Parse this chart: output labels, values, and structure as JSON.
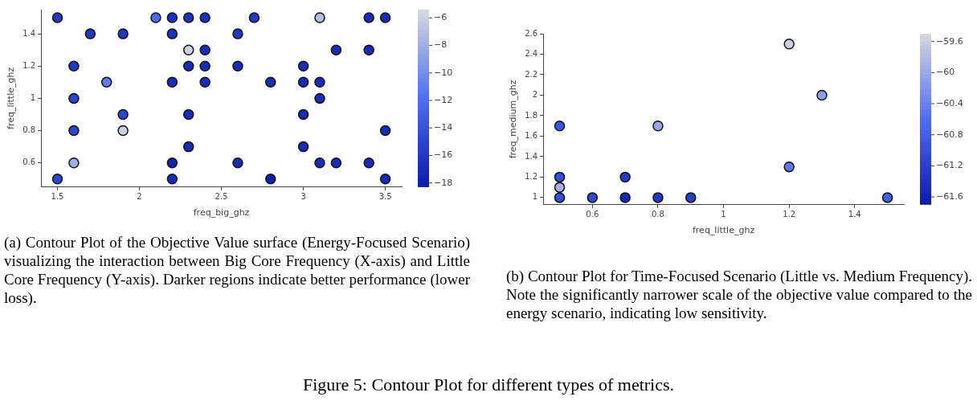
{
  "chart_data": [
    {
      "type": "scatter",
      "xlabel": "freq_big_ghz",
      "ylabel": "freq_little_ghz",
      "xlim": [
        1.4,
        3.6
      ],
      "ylim": [
        0.45,
        1.55
      ],
      "xticks": [
        1.5,
        2,
        2.5,
        3,
        3.5
      ],
      "yticks": [
        0.6,
        0.8,
        1,
        1.2,
        1.4
      ],
      "clim": [
        -18.3,
        -5.4
      ],
      "cticks": [
        -18,
        -16,
        -14,
        -12,
        -10,
        -8,
        -6
      ],
      "marker": "circle",
      "x": [
        1.5,
        2.1,
        2.2,
        2.3,
        2.4,
        2.7,
        3.1,
        3.4,
        3.5,
        1.7,
        1.9,
        2.2,
        2.6,
        2.3,
        2.4,
        3.2,
        3.4,
        1.6,
        2.3,
        2.4,
        2.6,
        3.0,
        1.8,
        2.2,
        2.4,
        2.8,
        3.0,
        3.1,
        1.6,
        3.1,
        1.9,
        2.3,
        3.0,
        1.6,
        1.9,
        3.5,
        2.3,
        3.0,
        1.6,
        2.2,
        2.6,
        3.1,
        3.2,
        3.4,
        1.5,
        2.2,
        2.8,
        3.5
      ],
      "values": [
        1.5,
        1.5,
        1.5,
        1.5,
        1.5,
        1.5,
        1.5,
        1.5,
        1.5,
        1.4,
        1.4,
        1.4,
        1.4,
        1.3,
        1.3,
        1.3,
        1.3,
        1.2,
        1.2,
        1.2,
        1.2,
        1.2,
        1.1,
        1.1,
        1.1,
        1.1,
        1.1,
        1.1,
        1.0,
        1.0,
        0.9,
        0.9,
        0.9,
        0.8,
        0.8,
        0.8,
        0.7,
        0.7,
        0.6,
        0.6,
        0.6,
        0.6,
        0.6,
        0.6,
        0.5,
        0.5,
        0.5,
        0.5
      ],
      "cvalues": [
        -16,
        -12,
        -16.5,
        -16.5,
        -16.5,
        -16,
        -7,
        -17,
        -17,
        -16,
        -16,
        -16.5,
        -16,
        -6,
        -17,
        -17,
        -17,
        -16,
        -17,
        -17,
        -17,
        -17,
        -11,
        -17,
        -17,
        -17,
        -17,
        -17,
        -15,
        -17,
        -15,
        -17,
        -17,
        -15,
        -6,
        -17,
        -17,
        -17,
        -8,
        -17.5,
        -17,
        -17,
        -17,
        -17,
        -15,
        -17,
        -18,
        -17
      ],
      "annotations": [
        "(a) Contour Plot of the Objective Value surface (Energy-Focused Scenario) visualizing the interaction between Big Core Frequency (X-axis) and Little Core Frequency (Y-axis). Darker regions indicate better performance (lower loss)."
      ]
    },
    {
      "type": "scatter",
      "xlabel": "freq_little_ghz",
      "ylabel": "freq_medium_ghz",
      "xlim": [
        0.45,
        1.55
      ],
      "ylim": [
        0.93,
        2.6
      ],
      "xticks": [
        0.6,
        0.8,
        1,
        1.2,
        1.4
      ],
      "yticks": [
        1,
        1.2,
        1.4,
        1.6,
        1.8,
        2,
        2.2,
        2.4,
        2.6
      ],
      "clim": [
        -61.7,
        -59.5
      ],
      "cticks": [
        -61.6,
        -61.2,
        -60.8,
        -60.4,
        -60,
        -59.6
      ],
      "marker": "circle",
      "x": [
        0.5,
        0.5,
        0.5,
        0.5,
        0.6,
        0.7,
        0.7,
        0.8,
        0.9,
        0.8,
        1.2,
        1.3,
        1.2,
        1.5
      ],
      "values": [
        1.7,
        1.2,
        1.1,
        1.0,
        1.0,
        1.2,
        1.0,
        1.0,
        1.0,
        1.7,
        2.5,
        2.0,
        1.3,
        1.0
      ],
      "cvalues": [
        -60.9,
        -61.0,
        -59.9,
        -61.0,
        -61.1,
        -61.3,
        -61.5,
        -61.3,
        -61.2,
        -60.0,
        -59.6,
        -60.1,
        -60.5,
        -60.8
      ],
      "annotations": [
        "(b) Contour Plot for Time-Focused Scenario (Little vs. Medium Frequency). Note the significantly narrower scale of the objective value compared to the energy scenario, indicating low sensitivity.",
        "Figure 5: Contour Plot for different types of metrics."
      ]
    }
  ]
}
